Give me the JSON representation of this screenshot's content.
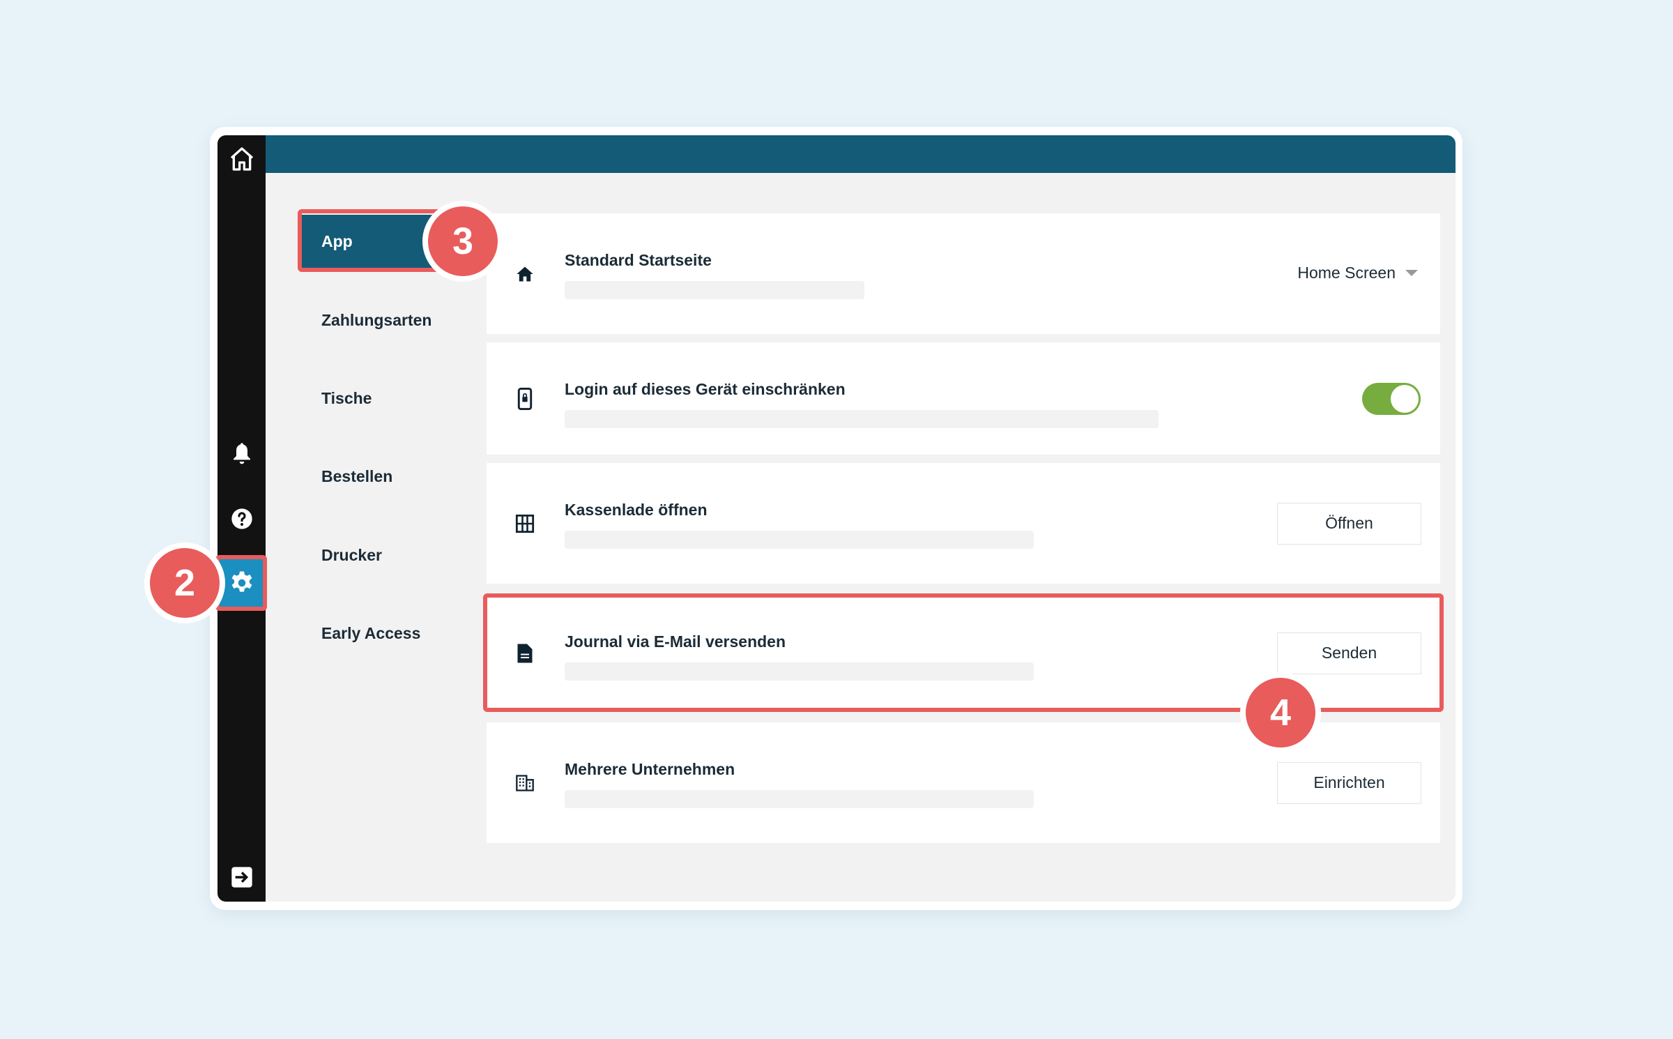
{
  "colors": {
    "accent": "#135b77",
    "highlight": "#e85c5c",
    "toggle_on": "#76ad3e",
    "settings_active": "#1a8fc0"
  },
  "sidebar": {
    "icons": [
      "home-icon",
      "bell-icon",
      "help-icon",
      "gear-icon",
      "logout-icon"
    ]
  },
  "nav": {
    "items": [
      {
        "label": "App",
        "active": true
      },
      {
        "label": "Zahlungsarten"
      },
      {
        "label": "Tische"
      },
      {
        "label": "Bestellen"
      },
      {
        "label": "Drucker"
      },
      {
        "label": "Early Access"
      }
    ]
  },
  "settings": [
    {
      "title": "Standard Startseite",
      "icon": "home-icon",
      "control": "dropdown",
      "value": "Home Screen"
    },
    {
      "title": "Login auf dieses Gerät einschränken",
      "icon": "phone-lock-icon",
      "control": "toggle",
      "on": true
    },
    {
      "title": "Kassenlade öffnen",
      "icon": "grid-icon",
      "control": "button",
      "label": "Öffnen"
    },
    {
      "title": "Journal via E-Mail versenden",
      "icon": "document-icon",
      "control": "button",
      "label": "Senden"
    },
    {
      "title": "Mehrere Unternehmen",
      "icon": "building-icon",
      "control": "button",
      "label": "Einrichten"
    }
  ],
  "annotations": {
    "step2": "2",
    "step3": "3",
    "step4": "4"
  }
}
